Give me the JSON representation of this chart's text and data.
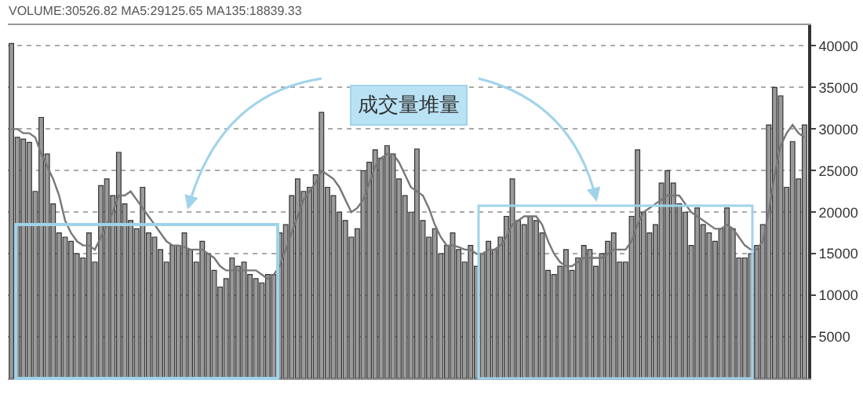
{
  "chart_data": {
    "type": "bar",
    "title": "VOLUME:30526.82 MA5:29125.65 MA135:18839.33",
    "categories": [
      null,
      null,
      null,
      null,
      null,
      null,
      null,
      null,
      null,
      null,
      null,
      null,
      null,
      null,
      null,
      null,
      null,
      null,
      null,
      null,
      null,
      null,
      null,
      null,
      null,
      null,
      null,
      null,
      null,
      null,
      null,
      null,
      null,
      null,
      null,
      null,
      null,
      null,
      null,
      null,
      null,
      null,
      null,
      null,
      null,
      null,
      null,
      null,
      null,
      null,
      null,
      null,
      null,
      null,
      null,
      null,
      null,
      null,
      null,
      null,
      null,
      null,
      null,
      null,
      null,
      null,
      null,
      null,
      null,
      null,
      null,
      null,
      null,
      null,
      null,
      null,
      null,
      null,
      null,
      null,
      null,
      null,
      null,
      null,
      null,
      null,
      null,
      null,
      null,
      null,
      null,
      null,
      null,
      null,
      null,
      null,
      null,
      null,
      null,
      null,
      null,
      null,
      null,
      null,
      null,
      null,
      null,
      null,
      null,
      null,
      null,
      null,
      null,
      null,
      null,
      null,
      null,
      null,
      null,
      null,
      null,
      null,
      null,
      null,
      null,
      null,
      null,
      null,
      null,
      null,
      null,
      null,
      null,
      null
    ],
    "series": [
      {
        "color": "#9a9a9a",
        "values": [
          40300,
          29000,
          28800,
          28400,
          22500,
          31400,
          27000,
          21000,
          17500,
          17000,
          16500,
          15000,
          14500,
          17500,
          14000,
          23200,
          24000,
          22000,
          27200,
          21000,
          19000,
          18000,
          23000,
          17500,
          17000,
          15500,
          14000,
          16000,
          16000,
          17500,
          15500,
          14000,
          16500,
          15000,
          13000,
          11000,
          12000,
          14500,
          13500,
          14000,
          12500,
          12000,
          11500,
          12500,
          12500,
          17500,
          18500,
          22000,
          24000,
          22500,
          23000,
          24500,
          32000,
          23000,
          22000,
          20000,
          19000,
          17000,
          18000,
          25000,
          26000,
          27500,
          26500,
          28000,
          27000,
          24000,
          22000,
          20000,
          27600,
          19000,
          17000,
          18000,
          15000,
          16000,
          17500,
          15500,
          14000,
          16000,
          13500,
          15000,
          16500,
          15500,
          17000,
          19500,
          24000,
          19000,
          18500,
          19500,
          19000,
          17500,
          13000,
          12500,
          13500,
          15500,
          13000,
          14500,
          16000,
          15500,
          13500,
          15000,
          16500,
          17500,
          14000,
          14000,
          19500,
          27500,
          20000,
          17500,
          18500,
          23500,
          25000,
          23500,
          21000,
          20000,
          16000,
          20500,
          18500,
          17500,
          16500,
          18000,
          20500,
          18000,
          14500,
          14500,
          15000,
          16000,
          18500,
          30500,
          35000,
          34000,
          23000,
          28500,
          24000,
          30500
        ]
      },
      {
        "type": "line",
        "color": "#777777",
        "values": [
          30000,
          30000,
          29500,
          29500,
          29000,
          27000,
          25500,
          24000,
          22000,
          19000,
          17500,
          16500,
          16000,
          16000,
          15500,
          17000,
          18500,
          20000,
          22000,
          22000,
          22500,
          21500,
          20500,
          19500,
          18500,
          17500,
          16500,
          16000,
          16000,
          15800,
          15500,
          15500,
          15500,
          15000,
          14500,
          13500,
          13000,
          13000,
          13000,
          13000,
          13000,
          13000,
          12500,
          12000,
          12500,
          13500,
          15500,
          17500,
          19500,
          21500,
          22500,
          23500,
          25000,
          24500,
          24000,
          23000,
          21500,
          20000,
          20500,
          21500,
          23500,
          25500,
          26500,
          27000,
          27000,
          26000,
          24500,
          23000,
          22500,
          22000,
          20500,
          18500,
          17000,
          16000,
          16000,
          15800,
          15500,
          15500,
          15000,
          15000,
          15500,
          15500,
          16000,
          17000,
          18500,
          19000,
          19500,
          19500,
          19500,
          18500,
          16500,
          15000,
          14000,
          13500,
          13500,
          14000,
          14500,
          14500,
          14500,
          14500,
          15000,
          15500,
          15500,
          15500,
          16500,
          18500,
          20000,
          20500,
          21000,
          21500,
          22000,
          22000,
          22000,
          21000,
          20000,
          19500,
          19000,
          18500,
          18000,
          18000,
          18500,
          18000,
          17000,
          16000,
          15500,
          15500,
          16500,
          20000,
          24500,
          28000,
          29500,
          30500,
          29500,
          29000
        ]
      }
    ],
    "ylim": [
      0,
      42500
    ],
    "yticks": [
      5000,
      10000,
      15000,
      20000,
      25000,
      30000,
      35000,
      40000
    ],
    "grid": "y",
    "annotations": [
      "成交量堆量"
    ]
  }
}
